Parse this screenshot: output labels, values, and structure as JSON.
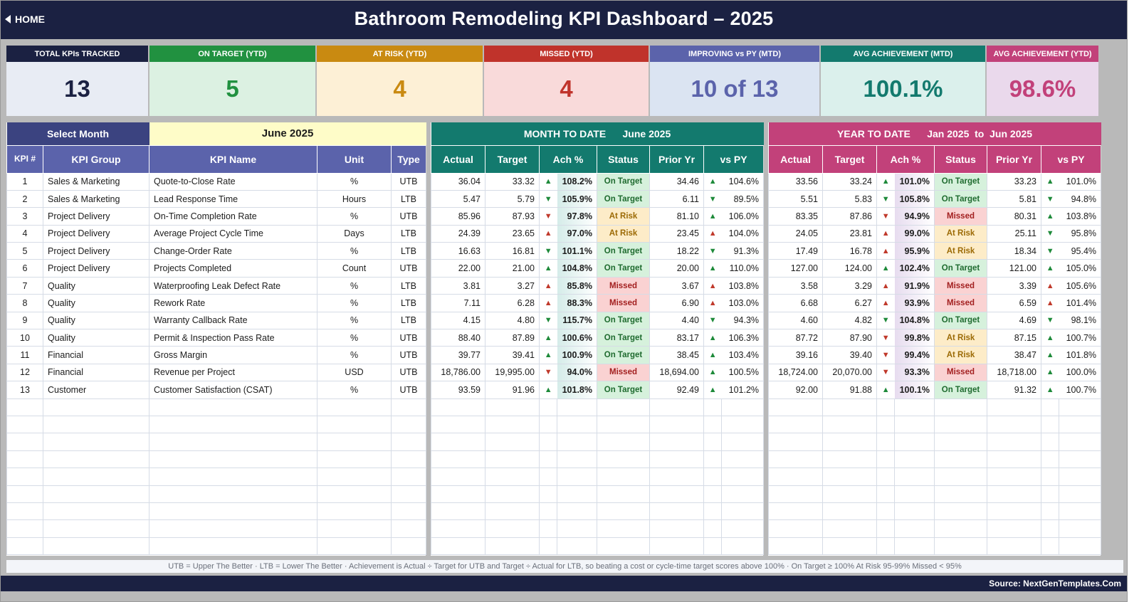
{
  "header": {
    "home_label": "HOME",
    "title": "Bathroom Remodeling KPI Dashboard   –   2025"
  },
  "kpi_cards": [
    {
      "label": "TOTAL KPIs TRACKED",
      "value": "13",
      "head_color": "#1b2142",
      "bg": "#e8ecf4",
      "fg": "#1b2142"
    },
    {
      "label": "ON TARGET (YTD)",
      "value": "5",
      "head_color": "#219140",
      "bg": "#dcf1e2",
      "fg": "#219140"
    },
    {
      "label": "AT RISK (YTD)",
      "value": "4",
      "head_color": "#c98a11",
      "bg": "#fdf0d6",
      "fg": "#c98a11"
    },
    {
      "label": "MISSED (YTD)",
      "value": "4",
      "head_color": "#c0332b",
      "bg": "#f9dada",
      "fg": "#c0332b"
    },
    {
      "label": "IMPROVING vs PY (MTD)",
      "value": "10 of 13",
      "head_color": "#5b63ab",
      "bg": "#dbe4f2",
      "fg": "#5b63ab"
    },
    {
      "label": "AVG ACHIEVEMENT (MTD)",
      "value": "100.1%",
      "head_color": "#137a6e",
      "bg": "#dbf0ec",
      "fg": "#137a6e"
    },
    {
      "label": "AVG ACHIEVEMENT (YTD)",
      "value": "98.6%",
      "head_color": "#c2417a",
      "bg": "#ead9ec",
      "fg": "#c2417a"
    }
  ],
  "left": {
    "select_label": "Select Month",
    "month_value": "June 2025",
    "columns": [
      "KPI #",
      "KPI Group",
      "KPI Name",
      "Unit",
      "Type"
    ]
  },
  "mtd": {
    "title": "MONTH TO DATE      June 2025",
    "columns": [
      "Actual",
      "Target",
      "Ach %",
      "Status",
      "Prior Yr",
      "vs PY"
    ]
  },
  "ytd": {
    "title": "YEAR TO DATE      Jan 2025  to  Jun 2025",
    "columns": [
      "Actual",
      "Target",
      "Ach %",
      "Status",
      "Prior Yr",
      "vs PY"
    ]
  },
  "rows": [
    {
      "n": "1",
      "group": "Sales & Marketing",
      "name": "Quote-to-Close Rate",
      "unit": "%",
      "type": "UTB",
      "mtd": {
        "actual": "36.04",
        "target": "33.32",
        "ach_arrow": "up",
        "ach_good": true,
        "ach": "108.2%",
        "status": "On Target",
        "prior": "34.46",
        "py_arrow": "up",
        "py_good": true,
        "vspy": "104.6%"
      },
      "ytd": {
        "actual": "33.56",
        "target": "33.24",
        "ach_arrow": "up",
        "ach_good": true,
        "ach": "101.0%",
        "status": "On Target",
        "prior": "33.23",
        "py_arrow": "up",
        "py_good": true,
        "vspy": "101.0%"
      }
    },
    {
      "n": "2",
      "group": "Sales & Marketing",
      "name": "Lead Response Time",
      "unit": "Hours",
      "type": "LTB",
      "mtd": {
        "actual": "5.47",
        "target": "5.79",
        "ach_arrow": "down",
        "ach_good": true,
        "ach": "105.9%",
        "status": "On Target",
        "prior": "6.11",
        "py_arrow": "down",
        "py_good": true,
        "vspy": "89.5%"
      },
      "ytd": {
        "actual": "5.51",
        "target": "5.83",
        "ach_arrow": "down",
        "ach_good": true,
        "ach": "105.8%",
        "status": "On Target",
        "prior": "5.81",
        "py_arrow": "down",
        "py_good": true,
        "vspy": "94.8%"
      }
    },
    {
      "n": "3",
      "group": "Project Delivery",
      "name": "On-Time Completion Rate",
      "unit": "%",
      "type": "UTB",
      "mtd": {
        "actual": "85.96",
        "target": "87.93",
        "ach_arrow": "down",
        "ach_good": false,
        "ach": "97.8%",
        "status": "At Risk",
        "prior": "81.10",
        "py_arrow": "up",
        "py_good": true,
        "vspy": "106.0%"
      },
      "ytd": {
        "actual": "83.35",
        "target": "87.86",
        "ach_arrow": "down",
        "ach_good": false,
        "ach": "94.9%",
        "status": "Missed",
        "prior": "80.31",
        "py_arrow": "up",
        "py_good": true,
        "vspy": "103.8%"
      }
    },
    {
      "n": "4",
      "group": "Project Delivery",
      "name": "Average Project Cycle Time",
      "unit": "Days",
      "type": "LTB",
      "mtd": {
        "actual": "24.39",
        "target": "23.65",
        "ach_arrow": "up",
        "ach_good": false,
        "ach": "97.0%",
        "status": "At Risk",
        "prior": "23.45",
        "py_arrow": "up",
        "py_good": false,
        "vspy": "104.0%"
      },
      "ytd": {
        "actual": "24.05",
        "target": "23.81",
        "ach_arrow": "up",
        "ach_good": false,
        "ach": "99.0%",
        "status": "At Risk",
        "prior": "25.11",
        "py_arrow": "down",
        "py_good": true,
        "vspy": "95.8%"
      }
    },
    {
      "n": "5",
      "group": "Project Delivery",
      "name": "Change-Order Rate",
      "unit": "%",
      "type": "LTB",
      "mtd": {
        "actual": "16.63",
        "target": "16.81",
        "ach_arrow": "down",
        "ach_good": true,
        "ach": "101.1%",
        "status": "On Target",
        "prior": "18.22",
        "py_arrow": "down",
        "py_good": true,
        "vspy": "91.3%"
      },
      "ytd": {
        "actual": "17.49",
        "target": "16.78",
        "ach_arrow": "up",
        "ach_good": false,
        "ach": "95.9%",
        "status": "At Risk",
        "prior": "18.34",
        "py_arrow": "down",
        "py_good": true,
        "vspy": "95.4%"
      }
    },
    {
      "n": "6",
      "group": "Project Delivery",
      "name": "Projects Completed",
      "unit": "Count",
      "type": "UTB",
      "mtd": {
        "actual": "22.00",
        "target": "21.00",
        "ach_arrow": "up",
        "ach_good": true,
        "ach": "104.8%",
        "status": "On Target",
        "prior": "20.00",
        "py_arrow": "up",
        "py_good": true,
        "vspy": "110.0%"
      },
      "ytd": {
        "actual": "127.00",
        "target": "124.00",
        "ach_arrow": "up",
        "ach_good": true,
        "ach": "102.4%",
        "status": "On Target",
        "prior": "121.00",
        "py_arrow": "up",
        "py_good": true,
        "vspy": "105.0%"
      }
    },
    {
      "n": "7",
      "group": "Quality",
      "name": "Waterproofing Leak Defect Rate",
      "unit": "%",
      "type": "LTB",
      "mtd": {
        "actual": "3.81",
        "target": "3.27",
        "ach_arrow": "up",
        "ach_good": false,
        "ach": "85.8%",
        "status": "Missed",
        "prior": "3.67",
        "py_arrow": "up",
        "py_good": false,
        "vspy": "103.8%"
      },
      "ytd": {
        "actual": "3.58",
        "target": "3.29",
        "ach_arrow": "up",
        "ach_good": false,
        "ach": "91.9%",
        "status": "Missed",
        "prior": "3.39",
        "py_arrow": "up",
        "py_good": false,
        "vspy": "105.6%"
      }
    },
    {
      "n": "8",
      "group": "Quality",
      "name": "Rework Rate",
      "unit": "%",
      "type": "LTB",
      "mtd": {
        "actual": "7.11",
        "target": "6.28",
        "ach_arrow": "up",
        "ach_good": false,
        "ach": "88.3%",
        "status": "Missed",
        "prior": "6.90",
        "py_arrow": "up",
        "py_good": false,
        "vspy": "103.0%"
      },
      "ytd": {
        "actual": "6.68",
        "target": "6.27",
        "ach_arrow": "up",
        "ach_good": false,
        "ach": "93.9%",
        "status": "Missed",
        "prior": "6.59",
        "py_arrow": "up",
        "py_good": false,
        "vspy": "101.4%"
      }
    },
    {
      "n": "9",
      "group": "Quality",
      "name": "Warranty Callback Rate",
      "unit": "%",
      "type": "LTB",
      "mtd": {
        "actual": "4.15",
        "target": "4.80",
        "ach_arrow": "down",
        "ach_good": true,
        "ach": "115.7%",
        "status": "On Target",
        "prior": "4.40",
        "py_arrow": "down",
        "py_good": true,
        "vspy": "94.3%"
      },
      "ytd": {
        "actual": "4.60",
        "target": "4.82",
        "ach_arrow": "down",
        "ach_good": true,
        "ach": "104.8%",
        "status": "On Target",
        "prior": "4.69",
        "py_arrow": "down",
        "py_good": true,
        "vspy": "98.1%"
      }
    },
    {
      "n": "10",
      "group": "Quality",
      "name": "Permit & Inspection Pass Rate",
      "unit": "%",
      "type": "UTB",
      "mtd": {
        "actual": "88.40",
        "target": "87.89",
        "ach_arrow": "up",
        "ach_good": true,
        "ach": "100.6%",
        "status": "On Target",
        "prior": "83.17",
        "py_arrow": "up",
        "py_good": true,
        "vspy": "106.3%"
      },
      "ytd": {
        "actual": "87.72",
        "target": "87.90",
        "ach_arrow": "down",
        "ach_good": false,
        "ach": "99.8%",
        "status": "At Risk",
        "prior": "87.15",
        "py_arrow": "up",
        "py_good": true,
        "vspy": "100.7%"
      }
    },
    {
      "n": "11",
      "group": "Financial",
      "name": "Gross Margin",
      "unit": "%",
      "type": "UTB",
      "mtd": {
        "actual": "39.77",
        "target": "39.41",
        "ach_arrow": "up",
        "ach_good": true,
        "ach": "100.9%",
        "status": "On Target",
        "prior": "38.45",
        "py_arrow": "up",
        "py_good": true,
        "vspy": "103.4%"
      },
      "ytd": {
        "actual": "39.16",
        "target": "39.40",
        "ach_arrow": "down",
        "ach_good": false,
        "ach": "99.4%",
        "status": "At Risk",
        "prior": "38.47",
        "py_arrow": "up",
        "py_good": true,
        "vspy": "101.8%"
      }
    },
    {
      "n": "12",
      "group": "Financial",
      "name": "Revenue per Project",
      "unit": "USD",
      "type": "UTB",
      "mtd": {
        "actual": "18,786.00",
        "target": "19,995.00",
        "ach_arrow": "down",
        "ach_good": false,
        "ach": "94.0%",
        "status": "Missed",
        "prior": "18,694.00",
        "py_arrow": "up",
        "py_good": true,
        "vspy": "100.5%"
      },
      "ytd": {
        "actual": "18,724.00",
        "target": "20,070.00",
        "ach_arrow": "down",
        "ach_good": false,
        "ach": "93.3%",
        "status": "Missed",
        "prior": "18,718.00",
        "py_arrow": "up",
        "py_good": true,
        "vspy": "100.0%"
      }
    },
    {
      "n": "13",
      "group": "Customer",
      "name": "Customer Satisfaction (CSAT)",
      "unit": "%",
      "type": "UTB",
      "mtd": {
        "actual": "93.59",
        "target": "91.96",
        "ach_arrow": "up",
        "ach_good": true,
        "ach": "101.8%",
        "status": "On Target",
        "prior": "92.49",
        "py_arrow": "up",
        "py_good": true,
        "vspy": "101.2%"
      },
      "ytd": {
        "actual": "92.00",
        "target": "91.88",
        "ach_arrow": "up",
        "ach_good": true,
        "ach": "100.1%",
        "status": "On Target",
        "prior": "91.32",
        "py_arrow": "up",
        "py_good": true,
        "vspy": "100.7%"
      }
    }
  ],
  "empty_rows": 9,
  "legend_note": "UTB = Upper The Better   ·   LTB = Lower The Better   ·   Achievement is Actual ÷ Target for UTB and Target ÷ Actual for LTB, so beating a cost or cycle-time target scores above 100%   ·   On Target ≥ 100%   At Risk 95-99%   Missed < 95%",
  "source": "Source: NextGenTemplates.Com",
  "colors": {
    "left_header": "#5b63ab",
    "left_select": "#3b4380",
    "month_bg": "#fefcc8",
    "mtd_header": "#137a6e",
    "ytd_header": "#c2417a",
    "mtd_ach_bg": "#d5ece9",
    "ytd_ach_bg": "#e7dcef"
  }
}
